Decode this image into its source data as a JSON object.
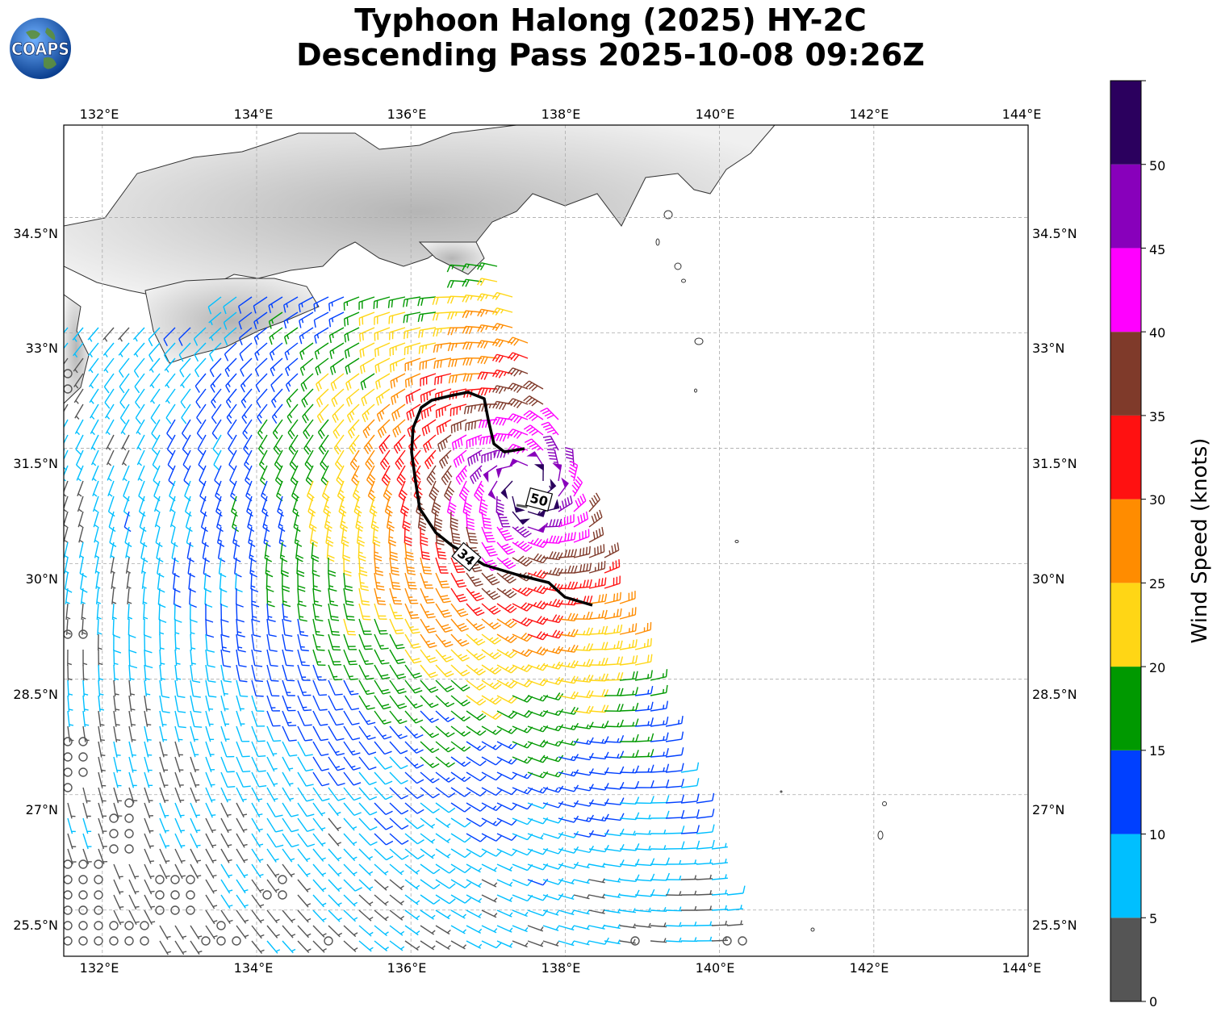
{
  "title": {
    "line1": "Typhoon Halong (2025) HY-2C",
    "line2": "Descending Pass 2025-10-08 09:26Z"
  },
  "logo": {
    "text": "COAPS",
    "icon": "globe-icon"
  },
  "map": {
    "lon_ticks": [
      "132°E",
      "134°E",
      "136°E",
      "138°E",
      "140°E",
      "142°E",
      "144°E"
    ],
    "lat_ticks": [
      "34.5°N",
      "33°N",
      "31.5°N",
      "30°N",
      "28.5°N",
      "27°N",
      "25.5°N"
    ],
    "contour_labels": [
      "50",
      "34"
    ]
  },
  "colorbar": {
    "label": "Wind Speed (knots)",
    "ticks": [
      "0",
      "5",
      "10",
      "15",
      "20",
      "25",
      "30",
      "35",
      "40",
      "45",
      "50"
    ],
    "bins": [
      {
        "from": 0,
        "to": 5,
        "color": "#555555"
      },
      {
        "from": 5,
        "to": 10,
        "color": "#00bfff"
      },
      {
        "from": 10,
        "to": 15,
        "color": "#0040ff"
      },
      {
        "from": 15,
        "to": 20,
        "color": "#009900"
      },
      {
        "from": 20,
        "to": 25,
        "color": "#ffd615"
      },
      {
        "from": 25,
        "to": 30,
        "color": "#ff8c00"
      },
      {
        "from": 30,
        "to": 35,
        "color": "#ff1111"
      },
      {
        "from": 35,
        "to": 40,
        "color": "#7f3a2a"
      },
      {
        "from": 40,
        "to": 45,
        "color": "#ff00ff"
      },
      {
        "from": 45,
        "to": 50,
        "color": "#8800bb"
      },
      {
        "from": 50,
        "to": 55,
        "color": "#2b005e"
      }
    ]
  },
  "storm": {
    "center_lon": 137.5,
    "center_lat": 31.0
  },
  "chart_data": {
    "type": "wind-barb map",
    "title": "Typhoon Halong (2025) HY-2C Descending Pass 2025-10-08 09:26Z",
    "x_range": [
      131.5,
      144
    ],
    "y_range": [
      24.9,
      35.7
    ],
    "colorbar_label": "Wind Speed (knots)",
    "colorbar_range": [
      0,
      55
    ],
    "contour_levels_kt": [
      34,
      50
    ]
  }
}
